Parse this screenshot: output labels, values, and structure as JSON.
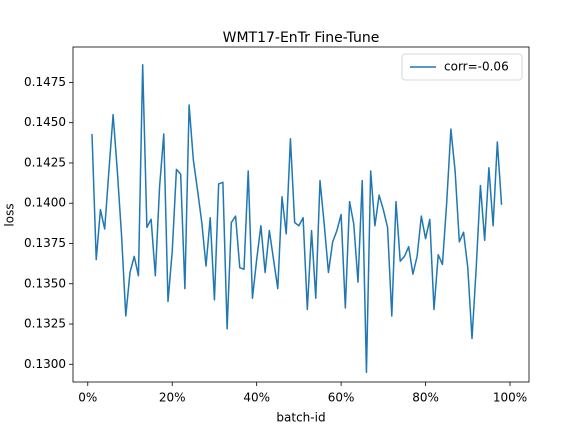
{
  "chart_data": {
    "type": "line",
    "title": "WMT17-EnTr Fine-Tune",
    "x_label": "batch-id",
    "y_label": "loss",
    "x": [
      1,
      2,
      3,
      4,
      5,
      6,
      7,
      8,
      9,
      10,
      11,
      12,
      13,
      14,
      15,
      16,
      17,
      18,
      19,
      20,
      21,
      22,
      23,
      24,
      25,
      26,
      27,
      28,
      29,
      30,
      31,
      32,
      33,
      34,
      35,
      36,
      37,
      38,
      39,
      40,
      41,
      42,
      43,
      44,
      45,
      46,
      47,
      48,
      49,
      50,
      51,
      52,
      53,
      54,
      55,
      56,
      57,
      58,
      59,
      60,
      61,
      62,
      63,
      64,
      65,
      66,
      67,
      68,
      69,
      70,
      71,
      72,
      73,
      74,
      75,
      76,
      77,
      78,
      79,
      80,
      81,
      82,
      83,
      84,
      85,
      86,
      87,
      88,
      89,
      90,
      91,
      92,
      93,
      94,
      95,
      96,
      97,
      98
    ],
    "series": [
      {
        "name": "corr=-0.06",
        "color": "#1f77b4",
        "values": [
          0.1443,
          0.1365,
          0.1396,
          0.1384,
          0.142,
          0.1455,
          0.142,
          0.138,
          0.133,
          0.1357,
          0.1367,
          0.1355,
          0.1486,
          0.1385,
          0.139,
          0.1355,
          0.141,
          0.1443,
          0.1339,
          0.137,
          0.1421,
          0.1418,
          0.1347,
          0.1461,
          0.1427,
          0.1408,
          0.1388,
          0.1361,
          0.1391,
          0.134,
          0.1412,
          0.1413,
          0.1322,
          0.1388,
          0.1392,
          0.136,
          0.1359,
          0.142,
          0.1341,
          0.1365,
          0.1386,
          0.1357,
          0.1383,
          0.1365,
          0.1347,
          0.1404,
          0.1381,
          0.144,
          0.1388,
          0.1386,
          0.1391,
          0.1334,
          0.1383,
          0.1341,
          0.1414,
          0.1387,
          0.1357,
          0.1376,
          0.1383,
          0.1393,
          0.1335,
          0.1401,
          0.1387,
          0.1351,
          0.1414,
          0.1295,
          0.142,
          0.1386,
          0.1405,
          0.1396,
          0.1385,
          0.133,
          0.1401,
          0.1364,
          0.1367,
          0.1373,
          0.1356,
          0.1367,
          0.1392,
          0.1378,
          0.139,
          0.1334,
          0.1368,
          0.1362,
          0.14,
          0.1446,
          0.142,
          0.1376,
          0.1382,
          0.136,
          0.1316,
          0.136,
          0.1411,
          0.1377,
          0.1422,
          0.1386,
          0.1438,
          0.1399
        ]
      }
    ],
    "xlim": [
      -3.5,
      104.5
    ],
    "ylim": [
      0.1289,
      0.1497
    ],
    "xticks": [
      {
        "value": 0,
        "label": "0%"
      },
      {
        "value": 20,
        "label": "20%"
      },
      {
        "value": 40,
        "label": "40%"
      },
      {
        "value": 60,
        "label": "60%"
      },
      {
        "value": 80,
        "label": "80%"
      },
      {
        "value": 100,
        "label": "100%"
      }
    ],
    "yticks": [
      {
        "value": 0.13,
        "label": "0.1300"
      },
      0.1325,
      {
        "value": 0.135,
        "label": "0.1350"
      },
      0.1375,
      {
        "value": 0.14,
        "label": "0.1400"
      },
      0.1425,
      {
        "value": 0.145,
        "label": "0.1450"
      },
      0.1475
    ],
    "legend": "upper right"
  }
}
